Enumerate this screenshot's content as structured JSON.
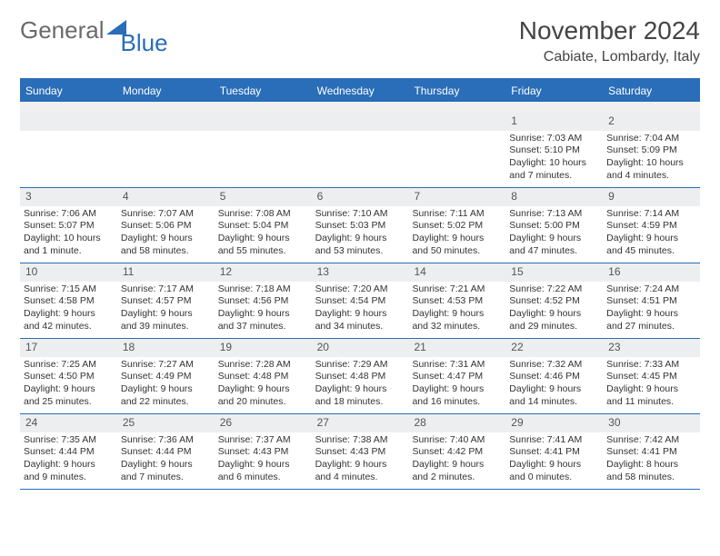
{
  "brand": {
    "general": "General",
    "blue": "Blue"
  },
  "title": "November 2024",
  "location": "Cabiate, Lombardy, Italy",
  "colors": {
    "accent": "#2a6db8",
    "header_bg": "#2a6db8",
    "daynum_bg": "#eceeef",
    "text": "#333333",
    "page_bg": "#ffffff"
  },
  "dow": [
    "Sunday",
    "Monday",
    "Tuesday",
    "Wednesday",
    "Thursday",
    "Friday",
    "Saturday"
  ],
  "weeks": [
    [
      {
        "n": "",
        "sr": "",
        "ss": "",
        "dl": ""
      },
      {
        "n": "",
        "sr": "",
        "ss": "",
        "dl": ""
      },
      {
        "n": "",
        "sr": "",
        "ss": "",
        "dl": ""
      },
      {
        "n": "",
        "sr": "",
        "ss": "",
        "dl": ""
      },
      {
        "n": "",
        "sr": "",
        "ss": "",
        "dl": ""
      },
      {
        "n": "1",
        "sr": "Sunrise: 7:03 AM",
        "ss": "Sunset: 5:10 PM",
        "dl": "Daylight: 10 hours and 7 minutes."
      },
      {
        "n": "2",
        "sr": "Sunrise: 7:04 AM",
        "ss": "Sunset: 5:09 PM",
        "dl": "Daylight: 10 hours and 4 minutes."
      }
    ],
    [
      {
        "n": "3",
        "sr": "Sunrise: 7:06 AM",
        "ss": "Sunset: 5:07 PM",
        "dl": "Daylight: 10 hours and 1 minute."
      },
      {
        "n": "4",
        "sr": "Sunrise: 7:07 AM",
        "ss": "Sunset: 5:06 PM",
        "dl": "Daylight: 9 hours and 58 minutes."
      },
      {
        "n": "5",
        "sr": "Sunrise: 7:08 AM",
        "ss": "Sunset: 5:04 PM",
        "dl": "Daylight: 9 hours and 55 minutes."
      },
      {
        "n": "6",
        "sr": "Sunrise: 7:10 AM",
        "ss": "Sunset: 5:03 PM",
        "dl": "Daylight: 9 hours and 53 minutes."
      },
      {
        "n": "7",
        "sr": "Sunrise: 7:11 AM",
        "ss": "Sunset: 5:02 PM",
        "dl": "Daylight: 9 hours and 50 minutes."
      },
      {
        "n": "8",
        "sr": "Sunrise: 7:13 AM",
        "ss": "Sunset: 5:00 PM",
        "dl": "Daylight: 9 hours and 47 minutes."
      },
      {
        "n": "9",
        "sr": "Sunrise: 7:14 AM",
        "ss": "Sunset: 4:59 PM",
        "dl": "Daylight: 9 hours and 45 minutes."
      }
    ],
    [
      {
        "n": "10",
        "sr": "Sunrise: 7:15 AM",
        "ss": "Sunset: 4:58 PM",
        "dl": "Daylight: 9 hours and 42 minutes."
      },
      {
        "n": "11",
        "sr": "Sunrise: 7:17 AM",
        "ss": "Sunset: 4:57 PM",
        "dl": "Daylight: 9 hours and 39 minutes."
      },
      {
        "n": "12",
        "sr": "Sunrise: 7:18 AM",
        "ss": "Sunset: 4:56 PM",
        "dl": "Daylight: 9 hours and 37 minutes."
      },
      {
        "n": "13",
        "sr": "Sunrise: 7:20 AM",
        "ss": "Sunset: 4:54 PM",
        "dl": "Daylight: 9 hours and 34 minutes."
      },
      {
        "n": "14",
        "sr": "Sunrise: 7:21 AM",
        "ss": "Sunset: 4:53 PM",
        "dl": "Daylight: 9 hours and 32 minutes."
      },
      {
        "n": "15",
        "sr": "Sunrise: 7:22 AM",
        "ss": "Sunset: 4:52 PM",
        "dl": "Daylight: 9 hours and 29 minutes."
      },
      {
        "n": "16",
        "sr": "Sunrise: 7:24 AM",
        "ss": "Sunset: 4:51 PM",
        "dl": "Daylight: 9 hours and 27 minutes."
      }
    ],
    [
      {
        "n": "17",
        "sr": "Sunrise: 7:25 AM",
        "ss": "Sunset: 4:50 PM",
        "dl": "Daylight: 9 hours and 25 minutes."
      },
      {
        "n": "18",
        "sr": "Sunrise: 7:27 AM",
        "ss": "Sunset: 4:49 PM",
        "dl": "Daylight: 9 hours and 22 minutes."
      },
      {
        "n": "19",
        "sr": "Sunrise: 7:28 AM",
        "ss": "Sunset: 4:48 PM",
        "dl": "Daylight: 9 hours and 20 minutes."
      },
      {
        "n": "20",
        "sr": "Sunrise: 7:29 AM",
        "ss": "Sunset: 4:48 PM",
        "dl": "Daylight: 9 hours and 18 minutes."
      },
      {
        "n": "21",
        "sr": "Sunrise: 7:31 AM",
        "ss": "Sunset: 4:47 PM",
        "dl": "Daylight: 9 hours and 16 minutes."
      },
      {
        "n": "22",
        "sr": "Sunrise: 7:32 AM",
        "ss": "Sunset: 4:46 PM",
        "dl": "Daylight: 9 hours and 14 minutes."
      },
      {
        "n": "23",
        "sr": "Sunrise: 7:33 AM",
        "ss": "Sunset: 4:45 PM",
        "dl": "Daylight: 9 hours and 11 minutes."
      }
    ],
    [
      {
        "n": "24",
        "sr": "Sunrise: 7:35 AM",
        "ss": "Sunset: 4:44 PM",
        "dl": "Daylight: 9 hours and 9 minutes."
      },
      {
        "n": "25",
        "sr": "Sunrise: 7:36 AM",
        "ss": "Sunset: 4:44 PM",
        "dl": "Daylight: 9 hours and 7 minutes."
      },
      {
        "n": "26",
        "sr": "Sunrise: 7:37 AM",
        "ss": "Sunset: 4:43 PM",
        "dl": "Daylight: 9 hours and 6 minutes."
      },
      {
        "n": "27",
        "sr": "Sunrise: 7:38 AM",
        "ss": "Sunset: 4:43 PM",
        "dl": "Daylight: 9 hours and 4 minutes."
      },
      {
        "n": "28",
        "sr": "Sunrise: 7:40 AM",
        "ss": "Sunset: 4:42 PM",
        "dl": "Daylight: 9 hours and 2 minutes."
      },
      {
        "n": "29",
        "sr": "Sunrise: 7:41 AM",
        "ss": "Sunset: 4:41 PM",
        "dl": "Daylight: 9 hours and 0 minutes."
      },
      {
        "n": "30",
        "sr": "Sunrise: 7:42 AM",
        "ss": "Sunset: 4:41 PM",
        "dl": "Daylight: 8 hours and 58 minutes."
      }
    ]
  ]
}
